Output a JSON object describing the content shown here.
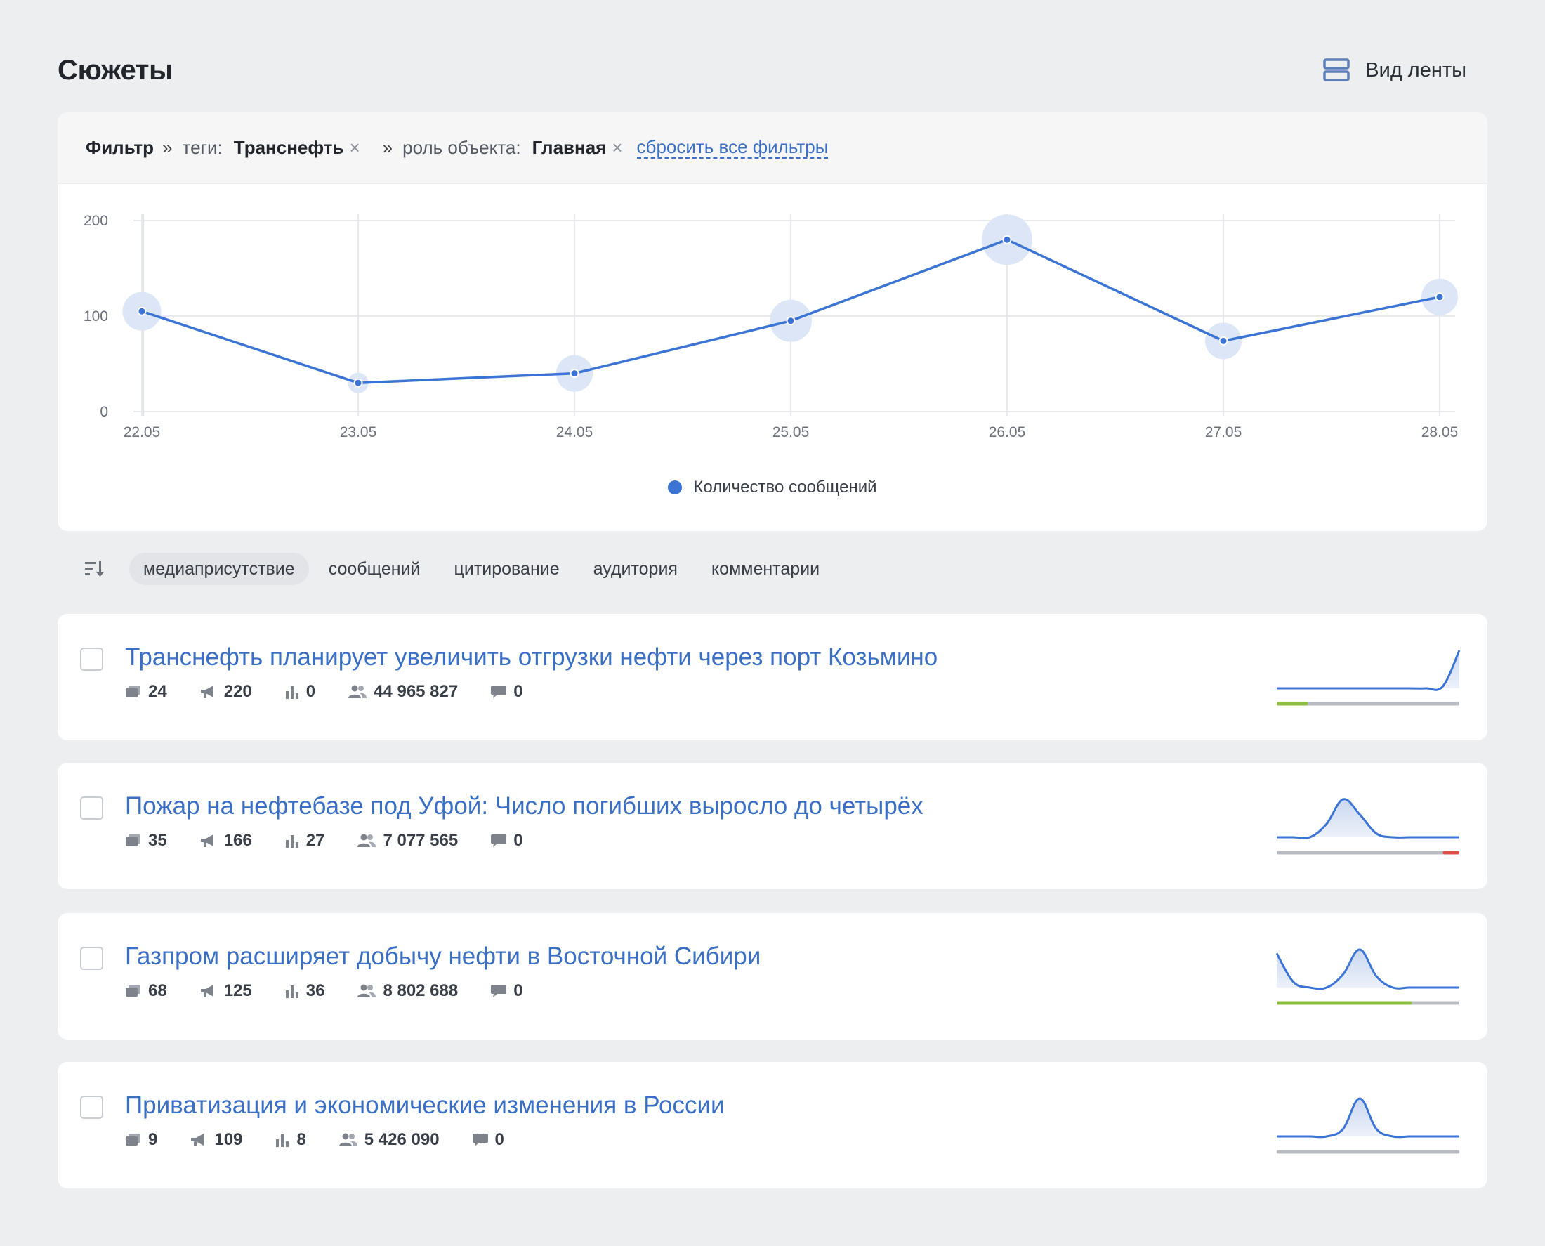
{
  "header": {
    "title": "Сюжеты",
    "view_label": "Вид ленты"
  },
  "filter": {
    "label": "Фильтр",
    "sep": "»",
    "tags_key": "теги:",
    "tags_value": "Транснефть",
    "role_key": "роль объекта:",
    "role_value": "Главная",
    "remove_glyph": "×",
    "reset_label": "сбросить все фильтры"
  },
  "chart_data": {
    "type": "line",
    "categories": [
      "22.05",
      "23.05",
      "24.05",
      "25.05",
      "26.05",
      "27.05",
      "28.05"
    ],
    "series": [
      {
        "name": "Количество сообщений",
        "values": [
          105,
          30,
          40,
          95,
          180,
          74,
          120
        ]
      }
    ],
    "ylim": [
      0,
      200
    ],
    "yticks": [
      "0",
      "100",
      "200"
    ],
    "bubble_relative_size": [
      0.55,
      0.29,
      0.52,
      0.6,
      0.72,
      0.52,
      0.52
    ],
    "legend_position": "bottom-center",
    "grid": true,
    "color": "#3b74d4"
  },
  "sort": {
    "items": [
      "медиаприсутствие",
      "сообщений",
      "цитирование",
      "аудитория",
      "комментарии"
    ],
    "active_index": 0
  },
  "stories": [
    {
      "title": "Транснефть планирует увеличить отгрузки нефти через порт Козьмино",
      "metrics": {
        "publications": "24",
        "reposts": "220",
        "citation": "0",
        "audience": "44 965 827",
        "comments": "0"
      },
      "spark": [
        0,
        0,
        0,
        0,
        0,
        0,
        0,
        0,
        0,
        0,
        0.05,
        1
      ],
      "sentiment": {
        "positive": 0.17,
        "negative": 0
      }
    },
    {
      "title": "Пожар на нефтебазе под Уфой: Число погибших выросло до четырёх",
      "metrics": {
        "publications": "35",
        "reposts": "166",
        "citation": "27",
        "audience": "7 077 565",
        "comments": "0"
      },
      "spark": [
        0,
        0,
        0,
        0.35,
        1,
        0.6,
        0.1,
        0,
        0,
        0,
        0,
        0
      ],
      "sentiment": {
        "positive": 0,
        "negative": 0.09
      }
    },
    {
      "title": "Газпром расширяет добычу нефти в Восточной Сибири",
      "metrics": {
        "publications": "68",
        "reposts": "125",
        "citation": "36",
        "audience": "8 802 688",
        "comments": "0"
      },
      "spark": [
        0.9,
        0.15,
        0,
        0,
        0.35,
        1,
        0.3,
        0,
        0,
        0,
        0,
        0
      ],
      "sentiment": {
        "positive": 0.74,
        "negative": 0
      }
    },
    {
      "title": "Приватизация и экономические изменения в России",
      "metrics": {
        "publications": "9",
        "reposts": "109",
        "citation": "8",
        "audience": "5 426 090",
        "comments": "0"
      },
      "spark": [
        0,
        0,
        0,
        0,
        0.2,
        1,
        0.2,
        0,
        0,
        0,
        0,
        0
      ],
      "sentiment": {
        "positive": 0,
        "negative": 0
      }
    }
  ]
}
